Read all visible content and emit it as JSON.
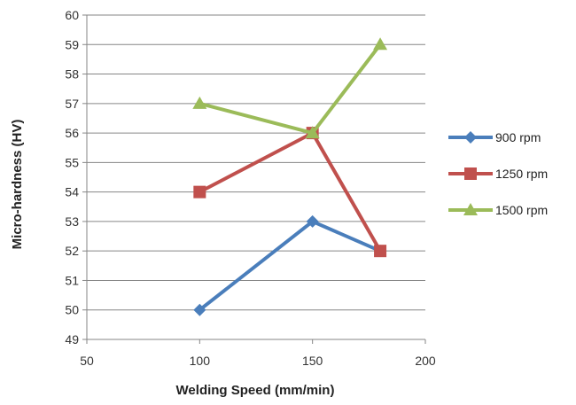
{
  "chart_data": {
    "type": "line",
    "xlabel": "Welding Speed (mm/min)",
    "ylabel": "Micro-hardness  (HV)",
    "xlim": [
      50,
      200
    ],
    "ylim": [
      49,
      60
    ],
    "x_ticks": [
      50,
      100,
      150,
      200
    ],
    "y_ticks": [
      49,
      50,
      51,
      52,
      53,
      54,
      55,
      56,
      57,
      58,
      59,
      60
    ],
    "grid": "horizontal",
    "legend_position": "right",
    "series": [
      {
        "name": "900 rpm",
        "color": "#4a7ebb",
        "marker": "diamond",
        "x": [
          100,
          150,
          180
        ],
        "y": [
          50,
          53,
          52
        ]
      },
      {
        "name": "1250 rpm",
        "color": "#c0504d",
        "marker": "square",
        "x": [
          100,
          150,
          180
        ],
        "y": [
          54,
          56,
          52
        ]
      },
      {
        "name": "1500 rpm",
        "color": "#9bbb59",
        "marker": "triangle",
        "x": [
          100,
          150,
          180
        ],
        "y": [
          57,
          56,
          59
        ]
      }
    ]
  }
}
